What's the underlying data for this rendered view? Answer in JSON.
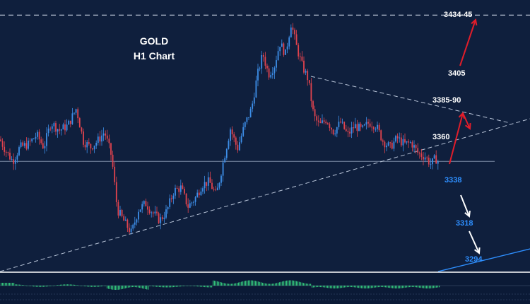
{
  "title": {
    "line1": "GOLD",
    "line2": "H1 Chart"
  },
  "colors": {
    "background": "#0f1f3d",
    "bull": "#3d8ee8",
    "bear": "#e0434e",
    "wick": "#c9d4e6",
    "trend_line": "#b8c4d8",
    "support_line": "#c0cadb",
    "red_arrow": "#e11d2a",
    "white_arrow": "#ffffff",
    "blue_label": "#2e8fff",
    "white_label": "#ffffff",
    "histogram": "#33c27a",
    "rising_line": "#2e8fff"
  },
  "levels": {
    "target_high": "3434-45",
    "target_3405": "3405",
    "target_3385": "3385-90",
    "level_3360": "3360",
    "support_3338": "3338",
    "support_3318": "3318",
    "support_3294": "3294"
  },
  "chart_data": {
    "type": "candlestick",
    "title": "GOLD H1 Chart",
    "instrument": "GOLD",
    "timeframe": "H1",
    "ylim": [
      3280,
      3450
    ],
    "horizontal_levels": [
      3443,
      3349
    ],
    "close_path": [
      [
        0,
        3363
      ],
      [
        8,
        3356
      ],
      [
        18,
        3349
      ],
      [
        28,
        3358
      ],
      [
        40,
        3360
      ],
      [
        52,
        3366
      ],
      [
        62,
        3358
      ],
      [
        72,
        3374
      ],
      [
        84,
        3369
      ],
      [
        96,
        3372
      ],
      [
        108,
        3383
      ],
      [
        118,
        3362
      ],
      [
        128,
        3358
      ],
      [
        138,
        3362
      ],
      [
        148,
        3368
      ],
      [
        158,
        3352
      ],
      [
        166,
        3318
      ],
      [
        176,
        3310
      ],
      [
        186,
        3303
      ],
      [
        196,
        3318
      ],
      [
        206,
        3322
      ],
      [
        216,
        3316
      ],
      [
        226,
        3311
      ],
      [
        236,
        3317
      ],
      [
        246,
        3330
      ],
      [
        256,
        3332
      ],
      [
        266,
        3320
      ],
      [
        276,
        3325
      ],
      [
        286,
        3334
      ],
      [
        296,
        3336
      ],
      [
        306,
        3327
      ],
      [
        316,
        3349
      ],
      [
        326,
        3370
      ],
      [
        336,
        3357
      ],
      [
        346,
        3372
      ],
      [
        356,
        3383
      ],
      [
        364,
        3404
      ],
      [
        372,
        3418
      ],
      [
        380,
        3405
      ],
      [
        388,
        3410
      ],
      [
        396,
        3425
      ],
      [
        404,
        3418
      ],
      [
        412,
        3438
      ],
      [
        420,
        3422
      ],
      [
        428,
        3410
      ],
      [
        436,
        3402
      ],
      [
        444,
        3378
      ],
      [
        452,
        3372
      ],
      [
        462,
        3376
      ],
      [
        472,
        3368
      ],
      [
        482,
        3374
      ],
      [
        492,
        3366
      ],
      [
        502,
        3372
      ],
      [
        512,
        3369
      ],
      [
        522,
        3374
      ],
      [
        532,
        3372
      ],
      [
        542,
        3362
      ],
      [
        552,
        3358
      ],
      [
        562,
        3364
      ],
      [
        572,
        3360
      ],
      [
        582,
        3361
      ],
      [
        592,
        3354
      ],
      [
        602,
        3352
      ],
      [
        610,
        3347
      ],
      [
        616,
        3351
      ],
      [
        622,
        3348
      ]
    ]
  }
}
